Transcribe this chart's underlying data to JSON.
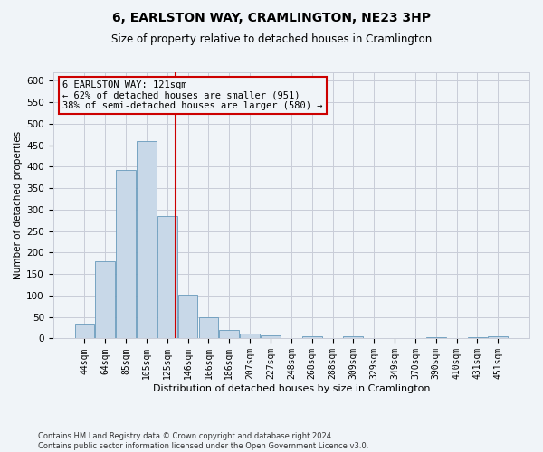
{
  "title_line1": "6, EARLSTON WAY, CRAMLINGTON, NE23 3HP",
  "title_line2": "Size of property relative to detached houses in Cramlington",
  "xlabel": "Distribution of detached houses by size in Cramlington",
  "ylabel": "Number of detached properties",
  "footnote": "Contains HM Land Registry data © Crown copyright and database right 2024.\nContains public sector information licensed under the Open Government Licence v3.0.",
  "bar_labels": [
    "44sqm",
    "64sqm",
    "85sqm",
    "105sqm",
    "125sqm",
    "146sqm",
    "166sqm",
    "186sqm",
    "207sqm",
    "227sqm",
    "248sqm",
    "268sqm",
    "288sqm",
    "309sqm",
    "329sqm",
    "349sqm",
    "370sqm",
    "390sqm",
    "410sqm",
    "431sqm",
    "451sqm"
  ],
  "bar_values": [
    35,
    180,
    392,
    460,
    285,
    102,
    49,
    19,
    12,
    7,
    0,
    5,
    0,
    5,
    0,
    0,
    0,
    3,
    0,
    3,
    5
  ],
  "bar_color": "#c8d8e8",
  "bar_edge_color": "#6699bb",
  "annotation_text_line1": "6 EARLSTON WAY: 121sqm",
  "annotation_text_line2": "← 62% of detached houses are smaller (951)",
  "annotation_text_line3": "38% of semi-detached houses are larger (580) →",
  "annotation_box_color": "#cc0000",
  "vline_color": "#cc0000",
  "vline_x": 4.42,
  "ylim": [
    0,
    620
  ],
  "yticks": [
    0,
    50,
    100,
    150,
    200,
    250,
    300,
    350,
    400,
    450,
    500,
    550,
    600
  ],
  "grid_color": "#c8ccd8",
  "bg_color": "#f0f4f8",
  "title_fontsize": 10,
  "subtitle_fontsize": 8.5,
  "ann_fontsize": 7.5,
  "xlabel_fontsize": 8,
  "ylabel_fontsize": 7.5,
  "tick_fontsize": 7,
  "footnote_fontsize": 6
}
